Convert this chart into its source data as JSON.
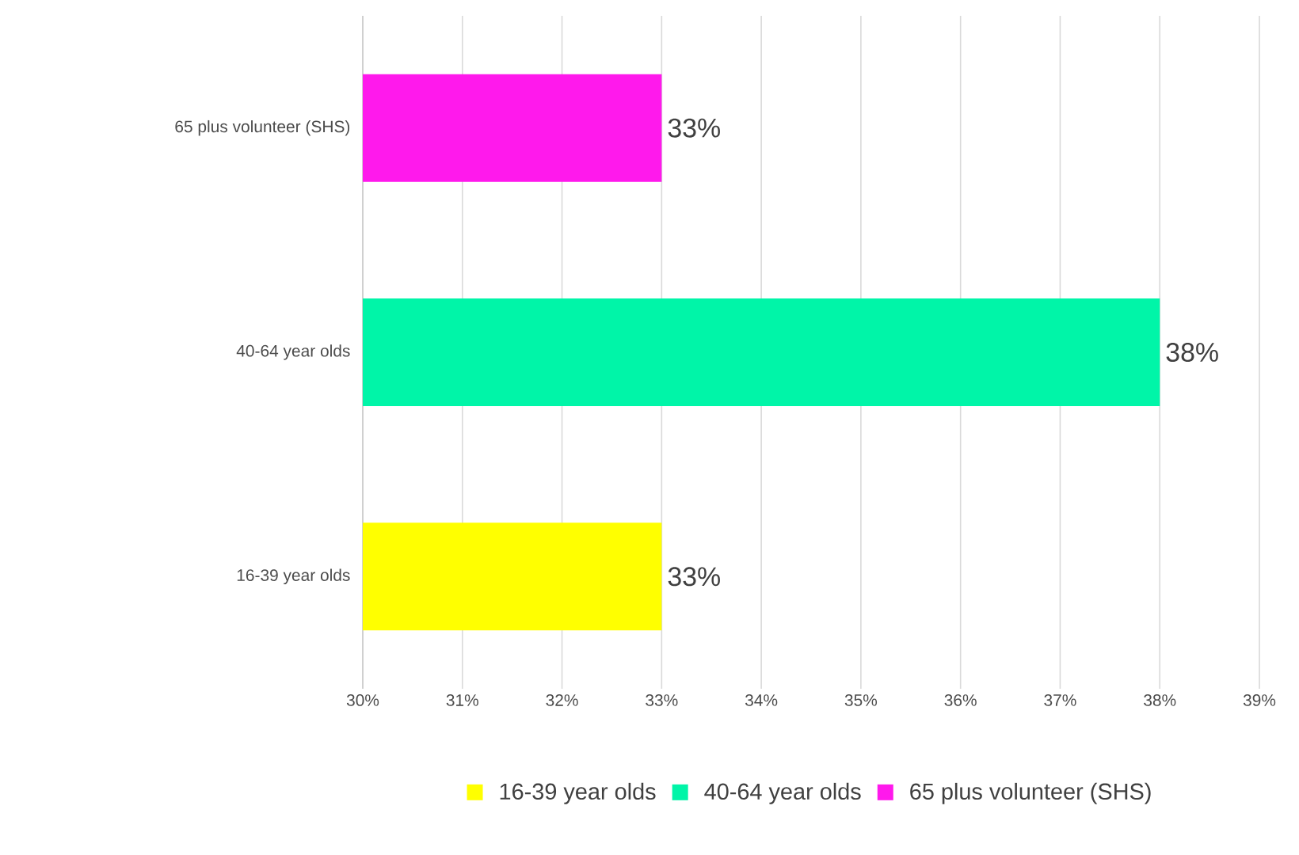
{
  "chart_data": {
    "type": "bar",
    "orientation": "horizontal",
    "categories": [
      "65 plus volunteer  (SHS)",
      "40-64 year olds",
      "16-39 year olds"
    ],
    "series": [
      {
        "name": "16-39 year olds",
        "color": "#ffff00",
        "values": [
          null,
          null,
          33
        ],
        "value_labels": [
          null,
          null,
          "33%"
        ]
      },
      {
        "name": "40-64 year olds",
        "color": "#00f5a8",
        "values": [
          null,
          38,
          null
        ],
        "value_labels": [
          null,
          "38%",
          null
        ]
      },
      {
        "name": "65 plus volunteer  (SHS)",
        "color": "#ff19ec",
        "values": [
          33,
          null,
          null
        ],
        "value_labels": [
          "33%",
          null,
          null
        ]
      }
    ],
    "xlim": [
      30,
      39
    ],
    "xticks": [
      {
        "value": 30,
        "label": "30%"
      },
      {
        "value": 31,
        "label": "31%"
      },
      {
        "value": 32,
        "label": "32%"
      },
      {
        "value": 33,
        "label": "33%"
      },
      {
        "value": 34,
        "label": "34%"
      },
      {
        "value": 35,
        "label": "35%"
      },
      {
        "value": 36,
        "label": "36%"
      },
      {
        "value": 37,
        "label": "37%"
      },
      {
        "value": 38,
        "label": "38%"
      },
      {
        "value": 39,
        "label": "39%"
      }
    ],
    "grid": "x",
    "legend": "bottom"
  }
}
